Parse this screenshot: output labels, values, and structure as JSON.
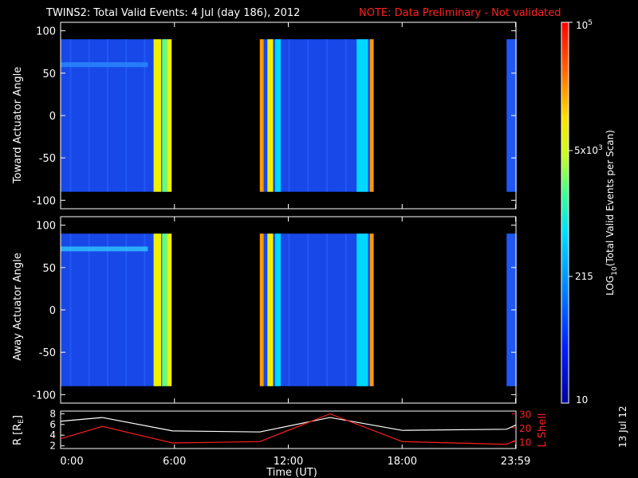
{
  "title": {
    "main": "TWINS2: Total Valid Events:  4 Jul (day 186), 2012",
    "note": "NOTE: Data Preliminary - Not validated"
  },
  "panels": [
    {
      "ylabel": "Toward Actuator Angle",
      "yticks": [
        "100",
        "50",
        "0",
        "-50",
        "-100"
      ]
    },
    {
      "ylabel": "Away Actuator Angle",
      "yticks": [
        "100",
        "50",
        "0",
        "-50",
        "-100"
      ]
    }
  ],
  "colorbar": {
    "label": "LOG10(Total Valid Events per Scan)",
    "ticks": [
      "10^5",
      "5x10^3",
      "215",
      "10"
    ]
  },
  "orbit_panel": {
    "ylabel_left": "R [RE]",
    "ylabel_right": "L Shell",
    "left_ticks": [
      "8",
      "6",
      "4",
      "2"
    ],
    "right_ticks": [
      "30",
      "20",
      "10"
    ]
  },
  "xaxis": {
    "label": "Time (UT)",
    "ticks": [
      "0:00",
      "6:00",
      "12:00",
      "18:00",
      "23:59"
    ]
  },
  "date_stamp": "13 Jul 12",
  "colors": {
    "note": "#ff2020",
    "r_line": "#ffffff",
    "lshell_line": "#ff2020"
  },
  "chart_data": {
    "type": "heatmap",
    "x": {
      "unit": "hours UT",
      "range": [
        0,
        24
      ]
    },
    "y": {
      "unit": "actuator angle (deg)",
      "range": [
        -110,
        110
      ],
      "data_range": [
        -90,
        90
      ]
    },
    "color_scale": {
      "type": "log",
      "range": [
        10,
        100000
      ]
    },
    "data_intervals_hours": [
      [
        0.0,
        5.85
      ],
      [
        10.5,
        16.5
      ],
      [
        23.5,
        24.0
      ]
    ],
    "bright_bands_hours": [
      {
        "start": 4.9,
        "end": 5.3,
        "level": "yellow"
      },
      {
        "start": 5.35,
        "end": 5.6,
        "level": "green"
      },
      {
        "start": 5.6,
        "end": 5.85,
        "level": "yellow"
      },
      {
        "start": 10.5,
        "end": 10.7,
        "level": "orange"
      },
      {
        "start": 10.9,
        "end": 11.2,
        "level": "yellow"
      },
      {
        "start": 11.3,
        "end": 11.6,
        "level": "cyan"
      },
      {
        "start": 15.6,
        "end": 16.2,
        "level": "cyan"
      },
      {
        "start": 16.3,
        "end": 16.5,
        "level": "orange"
      }
    ],
    "orbit": {
      "hours": [
        0,
        2.2,
        5.9,
        10.5,
        14.2,
        18.0,
        23.5,
        24
      ],
      "r_re": [
        6.6,
        7.3,
        4.8,
        4.6,
        7.3,
        4.9,
        5.1,
        5.9
      ],
      "l_shell": [
        12,
        21,
        9,
        10,
        30,
        10,
        8,
        11
      ]
    }
  }
}
